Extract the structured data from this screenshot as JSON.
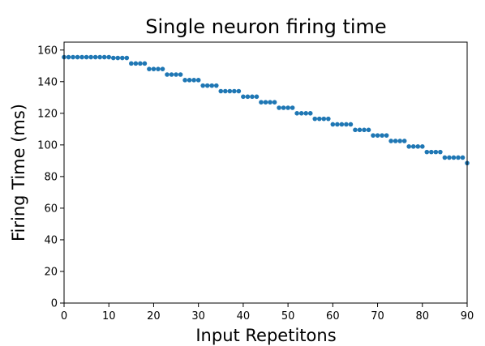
{
  "chart_data": {
    "type": "scatter",
    "title": "Single neuron firing time",
    "xlabel": "Input Repetitons",
    "ylabel": "Firing Time (ms)",
    "xlim": [
      0,
      90
    ],
    "ylim": [
      0,
      165
    ],
    "xticks": [
      0,
      10,
      20,
      30,
      40,
      50,
      60,
      70,
      80,
      90
    ],
    "yticks": [
      0,
      20,
      40,
      60,
      80,
      100,
      120,
      140,
      160
    ],
    "grid": false,
    "marker_color": "#1f77b4",
    "series": [
      {
        "x": [
          0,
          1,
          2,
          3,
          4,
          5,
          6,
          7,
          8,
          9,
          10,
          11,
          12,
          13,
          14,
          15,
          16,
          17,
          18,
          19,
          20,
          21,
          22,
          23,
          24,
          25,
          26,
          27,
          28,
          29,
          30,
          31,
          32,
          33,
          34,
          35,
          36,
          37,
          38,
          39,
          40,
          41,
          42,
          43,
          44,
          45,
          46,
          47,
          48,
          49,
          50,
          51,
          52,
          53,
          54,
          55,
          56,
          57,
          58,
          59,
          60,
          61,
          62,
          63,
          64,
          65,
          66,
          67,
          68,
          69,
          70,
          71,
          72,
          73,
          74,
          75,
          76,
          77,
          78,
          79,
          80,
          81,
          82,
          83,
          84,
          85,
          86,
          87,
          88,
          89,
          90
        ],
        "y": [
          155.5,
          155.5,
          155.5,
          155.5,
          155.5,
          155.5,
          155.5,
          155.5,
          155.5,
          155.5,
          155.5,
          155,
          155,
          155,
          155,
          151.5,
          151.5,
          151.5,
          151.5,
          148,
          148,
          148,
          148,
          144.5,
          144.5,
          144.5,
          144.5,
          141,
          141,
          141,
          141,
          137.5,
          137.5,
          137.5,
          137.5,
          134,
          134,
          134,
          134,
          134,
          130.5,
          130.5,
          130.5,
          130.5,
          127,
          127,
          127,
          127,
          123.5,
          123.5,
          123.5,
          123.5,
          120,
          120,
          120,
          120,
          116.5,
          116.5,
          116.5,
          116.5,
          113,
          113,
          113,
          113,
          113,
          109.5,
          109.5,
          109.5,
          109.5,
          106,
          106,
          106,
          106,
          102.5,
          102.5,
          102.5,
          102.5,
          99,
          99,
          99,
          99,
          95.5,
          95.5,
          95.5,
          95.5,
          92,
          92,
          92,
          92,
          92,
          88.5
        ]
      }
    ]
  }
}
